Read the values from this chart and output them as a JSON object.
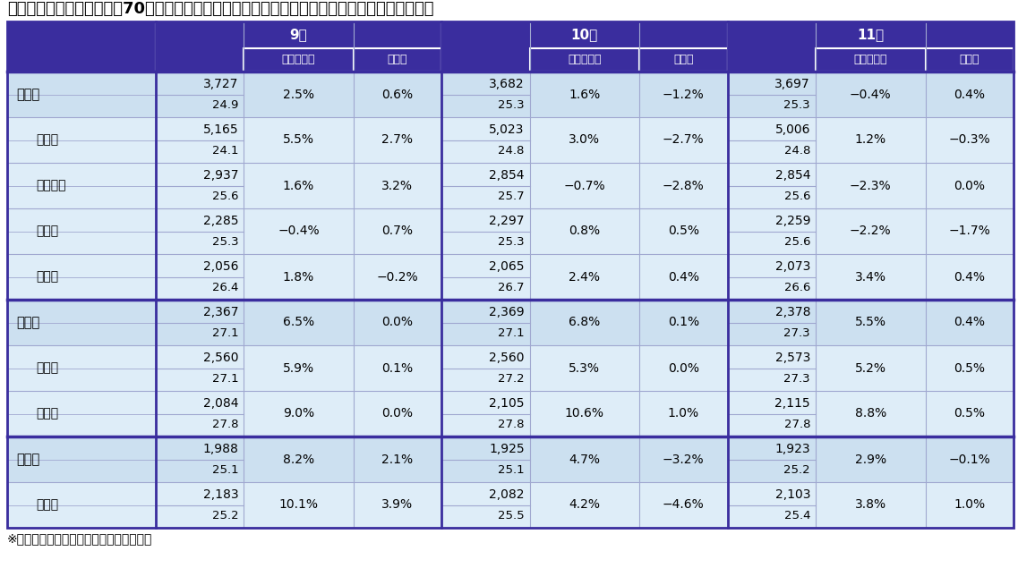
{
  "title": "三大都市圏および都府県　70㎡あたりの中古マンション価格　（図中の数値は１・７月の価格）",
  "footnote": "※上段は価格（単位：万円）、下段は築年",
  "header_bg": "#3a2d9e",
  "header_text": "#ffffff",
  "border_dark": "#3a2d9e",
  "border_light": "#a0a8d0",
  "cell_bg_major": "#cce0f0",
  "cell_bg_minor": "#deedf8",
  "months": [
    "9月",
    "10月",
    "11月"
  ],
  "rows": [
    {
      "label": "首都圏",
      "indent": 0,
      "is_major": true,
      "sep_above": false,
      "data": [
        {
          "price": "3,727",
          "nen": "24.9",
          "yoy": "2.5%",
          "mom": "0.6%"
        },
        {
          "price": "3,682",
          "nen": "25.3",
          "yoy": "1.6%",
          "mom": "−1.2%"
        },
        {
          "price": "3,697",
          "nen": "25.3",
          "yoy": "−0.4%",
          "mom": "0.4%"
        }
      ]
    },
    {
      "label": "東京都",
      "indent": 1,
      "is_major": false,
      "sep_above": false,
      "data": [
        {
          "price": "5,165",
          "nen": "24.1",
          "yoy": "5.5%",
          "mom": "2.7%"
        },
        {
          "price": "5,023",
          "nen": "24.8",
          "yoy": "3.0%",
          "mom": "−2.7%"
        },
        {
          "price": "5,006",
          "nen": "24.8",
          "yoy": "1.2%",
          "mom": "−0.3%"
        }
      ]
    },
    {
      "label": "神奈川県",
      "indent": 1,
      "is_major": false,
      "sep_above": false,
      "data": [
        {
          "price": "2,937",
          "nen": "25.6",
          "yoy": "1.6%",
          "mom": "3.2%"
        },
        {
          "price": "2,854",
          "nen": "25.7",
          "yoy": "−0.7%",
          "mom": "−2.8%"
        },
        {
          "price": "2,854",
          "nen": "25.6",
          "yoy": "−2.3%",
          "mom": "0.0%"
        }
      ]
    },
    {
      "label": "埼玉県",
      "indent": 1,
      "is_major": false,
      "sep_above": false,
      "data": [
        {
          "price": "2,285",
          "nen": "25.3",
          "yoy": "−0.4%",
          "mom": "0.7%"
        },
        {
          "price": "2,297",
          "nen": "25.3",
          "yoy": "0.8%",
          "mom": "0.5%"
        },
        {
          "price": "2,259",
          "nen": "25.6",
          "yoy": "−2.2%",
          "mom": "−1.7%"
        }
      ]
    },
    {
      "label": "千葉県",
      "indent": 1,
      "is_major": false,
      "sep_above": false,
      "data": [
        {
          "price": "2,056",
          "nen": "26.4",
          "yoy": "1.8%",
          "mom": "−0.2%"
        },
        {
          "price": "2,065",
          "nen": "26.7",
          "yoy": "2.4%",
          "mom": "0.4%"
        },
        {
          "price": "2,073",
          "nen": "26.6",
          "yoy": "3.4%",
          "mom": "0.4%"
        }
      ]
    },
    {
      "label": "近畿圏",
      "indent": 0,
      "is_major": true,
      "sep_above": true,
      "data": [
        {
          "price": "2,367",
          "nen": "27.1",
          "yoy": "6.5%",
          "mom": "0.0%"
        },
        {
          "price": "2,369",
          "nen": "27.1",
          "yoy": "6.8%",
          "mom": "0.1%"
        },
        {
          "price": "2,378",
          "nen": "27.3",
          "yoy": "5.5%",
          "mom": "0.4%"
        }
      ]
    },
    {
      "label": "大阪府",
      "indent": 1,
      "is_major": false,
      "sep_above": false,
      "data": [
        {
          "price": "2,560",
          "nen": "27.1",
          "yoy": "5.9%",
          "mom": "0.1%"
        },
        {
          "price": "2,560",
          "nen": "27.2",
          "yoy": "5.3%",
          "mom": "0.0%"
        },
        {
          "price": "2,573",
          "nen": "27.3",
          "yoy": "5.2%",
          "mom": "0.5%"
        }
      ]
    },
    {
      "label": "兵庫県",
      "indent": 1,
      "is_major": false,
      "sep_above": false,
      "data": [
        {
          "price": "2,084",
          "nen": "27.8",
          "yoy": "9.0%",
          "mom": "0.0%"
        },
        {
          "price": "2,105",
          "nen": "27.8",
          "yoy": "10.6%",
          "mom": "1.0%"
        },
        {
          "price": "2,115",
          "nen": "27.8",
          "yoy": "8.8%",
          "mom": "0.5%"
        }
      ]
    },
    {
      "label": "中部圏",
      "indent": 0,
      "is_major": true,
      "sep_above": true,
      "data": [
        {
          "price": "1,988",
          "nen": "25.1",
          "yoy": "8.2%",
          "mom": "2.1%"
        },
        {
          "price": "1,925",
          "nen": "25.1",
          "yoy": "4.7%",
          "mom": "−3.2%"
        },
        {
          "price": "1,923",
          "nen": "25.2",
          "yoy": "2.9%",
          "mom": "−0.1%"
        }
      ]
    },
    {
      "label": "愛知県",
      "indent": 1,
      "is_major": false,
      "sep_above": false,
      "data": [
        {
          "price": "2,183",
          "nen": "25.2",
          "yoy": "10.1%",
          "mom": "3.9%"
        },
        {
          "price": "2,082",
          "nen": "25.5",
          "yoy": "4.2%",
          "mom": "−4.6%"
        },
        {
          "price": "2,103",
          "nen": "25.4",
          "yoy": "3.8%",
          "mom": "1.0%"
        }
      ]
    }
  ]
}
